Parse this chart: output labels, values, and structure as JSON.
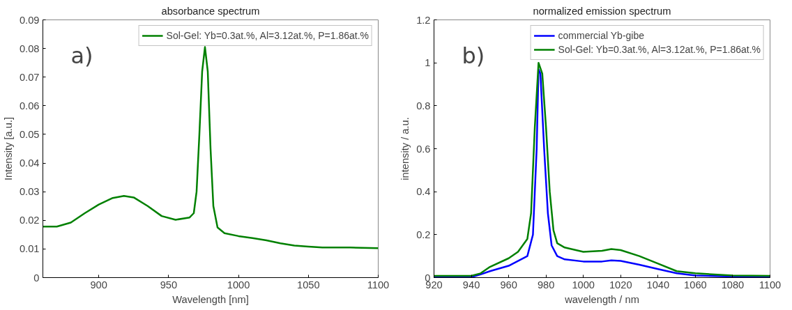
{
  "chart_data": [
    {
      "type": "line",
      "title": "absorbance spectrum",
      "xlabel": "Wavelength [nm]",
      "ylabel": "Intensity [a.u.]",
      "annotations": [
        "a)"
      ],
      "xlim": [
        860,
        1100
      ],
      "xticks": [
        900,
        950,
        1000,
        1050,
        1100
      ],
      "ylim": [
        0,
        0.09
      ],
      "yticks": [
        0,
        0.01,
        0.02,
        0.03,
        0.04,
        0.05,
        0.06,
        0.07,
        0.08,
        0.09
      ],
      "grid": false,
      "legend": "top right",
      "series": [
        {
          "name": "Sol-Gel: Yb=0.3at.%, Al=3.12at.%, P=1.86at.%",
          "color": "#008000",
          "x": [
            860,
            870,
            880,
            890,
            900,
            910,
            918,
            925,
            935,
            945,
            955,
            965,
            968,
            970,
            972,
            974,
            976,
            978,
            980,
            982,
            985,
            990,
            1000,
            1010,
            1020,
            1030,
            1040,
            1050,
            1060,
            1080,
            1100
          ],
          "values": [
            0.0178,
            0.0178,
            0.0192,
            0.0225,
            0.0255,
            0.0278,
            0.0285,
            0.028,
            0.025,
            0.0215,
            0.0202,
            0.021,
            0.0225,
            0.03,
            0.05,
            0.072,
            0.0805,
            0.072,
            0.045,
            0.025,
            0.0175,
            0.0155,
            0.0145,
            0.0138,
            0.013,
            0.012,
            0.0112,
            0.0108,
            0.0105,
            0.0105,
            0.0103
          ]
        }
      ]
    },
    {
      "type": "line",
      "title": "normalized emission spectrum",
      "xlabel": "wavelength / nm",
      "ylabel": "intensity / a.u.",
      "annotations": [
        "b)"
      ],
      "xlim": [
        920,
        1100
      ],
      "xticks": [
        920,
        940,
        960,
        980,
        1000,
        1020,
        1040,
        1060,
        1080,
        1100
      ],
      "ylim": [
        0,
        1.2
      ],
      "yticks": [
        0,
        0.2,
        0.4,
        0.6,
        0.8,
        1,
        1.2
      ],
      "grid": false,
      "legend": "top right",
      "series": [
        {
          "name": "commercial Yb-gibe",
          "color": "#0000ff",
          "x": [
            920,
            940,
            945,
            950,
            960,
            970,
            973,
            975,
            976,
            977,
            979,
            981,
            983,
            986,
            990,
            1000,
            1010,
            1015,
            1020,
            1030,
            1040,
            1050,
            1060,
            1080,
            1100
          ],
          "values": [
            0.002,
            0.002,
            0.015,
            0.03,
            0.055,
            0.1,
            0.2,
            0.6,
            0.97,
            0.95,
            0.6,
            0.3,
            0.15,
            0.1,
            0.085,
            0.075,
            0.075,
            0.08,
            0.078,
            0.06,
            0.04,
            0.02,
            0.01,
            0.005,
            0.002
          ]
        },
        {
          "name": "Sol-Gel: Yb=0.3at.%, Al=3.12at.%, P=1.86at.%",
          "color": "#008000",
          "x": [
            920,
            940,
            945,
            950,
            960,
            965,
            970,
            972,
            974,
            976,
            978,
            980,
            982,
            984,
            986,
            990,
            1000,
            1010,
            1015,
            1020,
            1030,
            1040,
            1050,
            1060,
            1080,
            1100
          ],
          "values": [
            0.008,
            0.008,
            0.02,
            0.05,
            0.09,
            0.12,
            0.18,
            0.3,
            0.7,
            1.0,
            0.95,
            0.7,
            0.4,
            0.22,
            0.16,
            0.14,
            0.12,
            0.125,
            0.133,
            0.128,
            0.1,
            0.065,
            0.03,
            0.02,
            0.01,
            0.008
          ]
        }
      ]
    }
  ]
}
